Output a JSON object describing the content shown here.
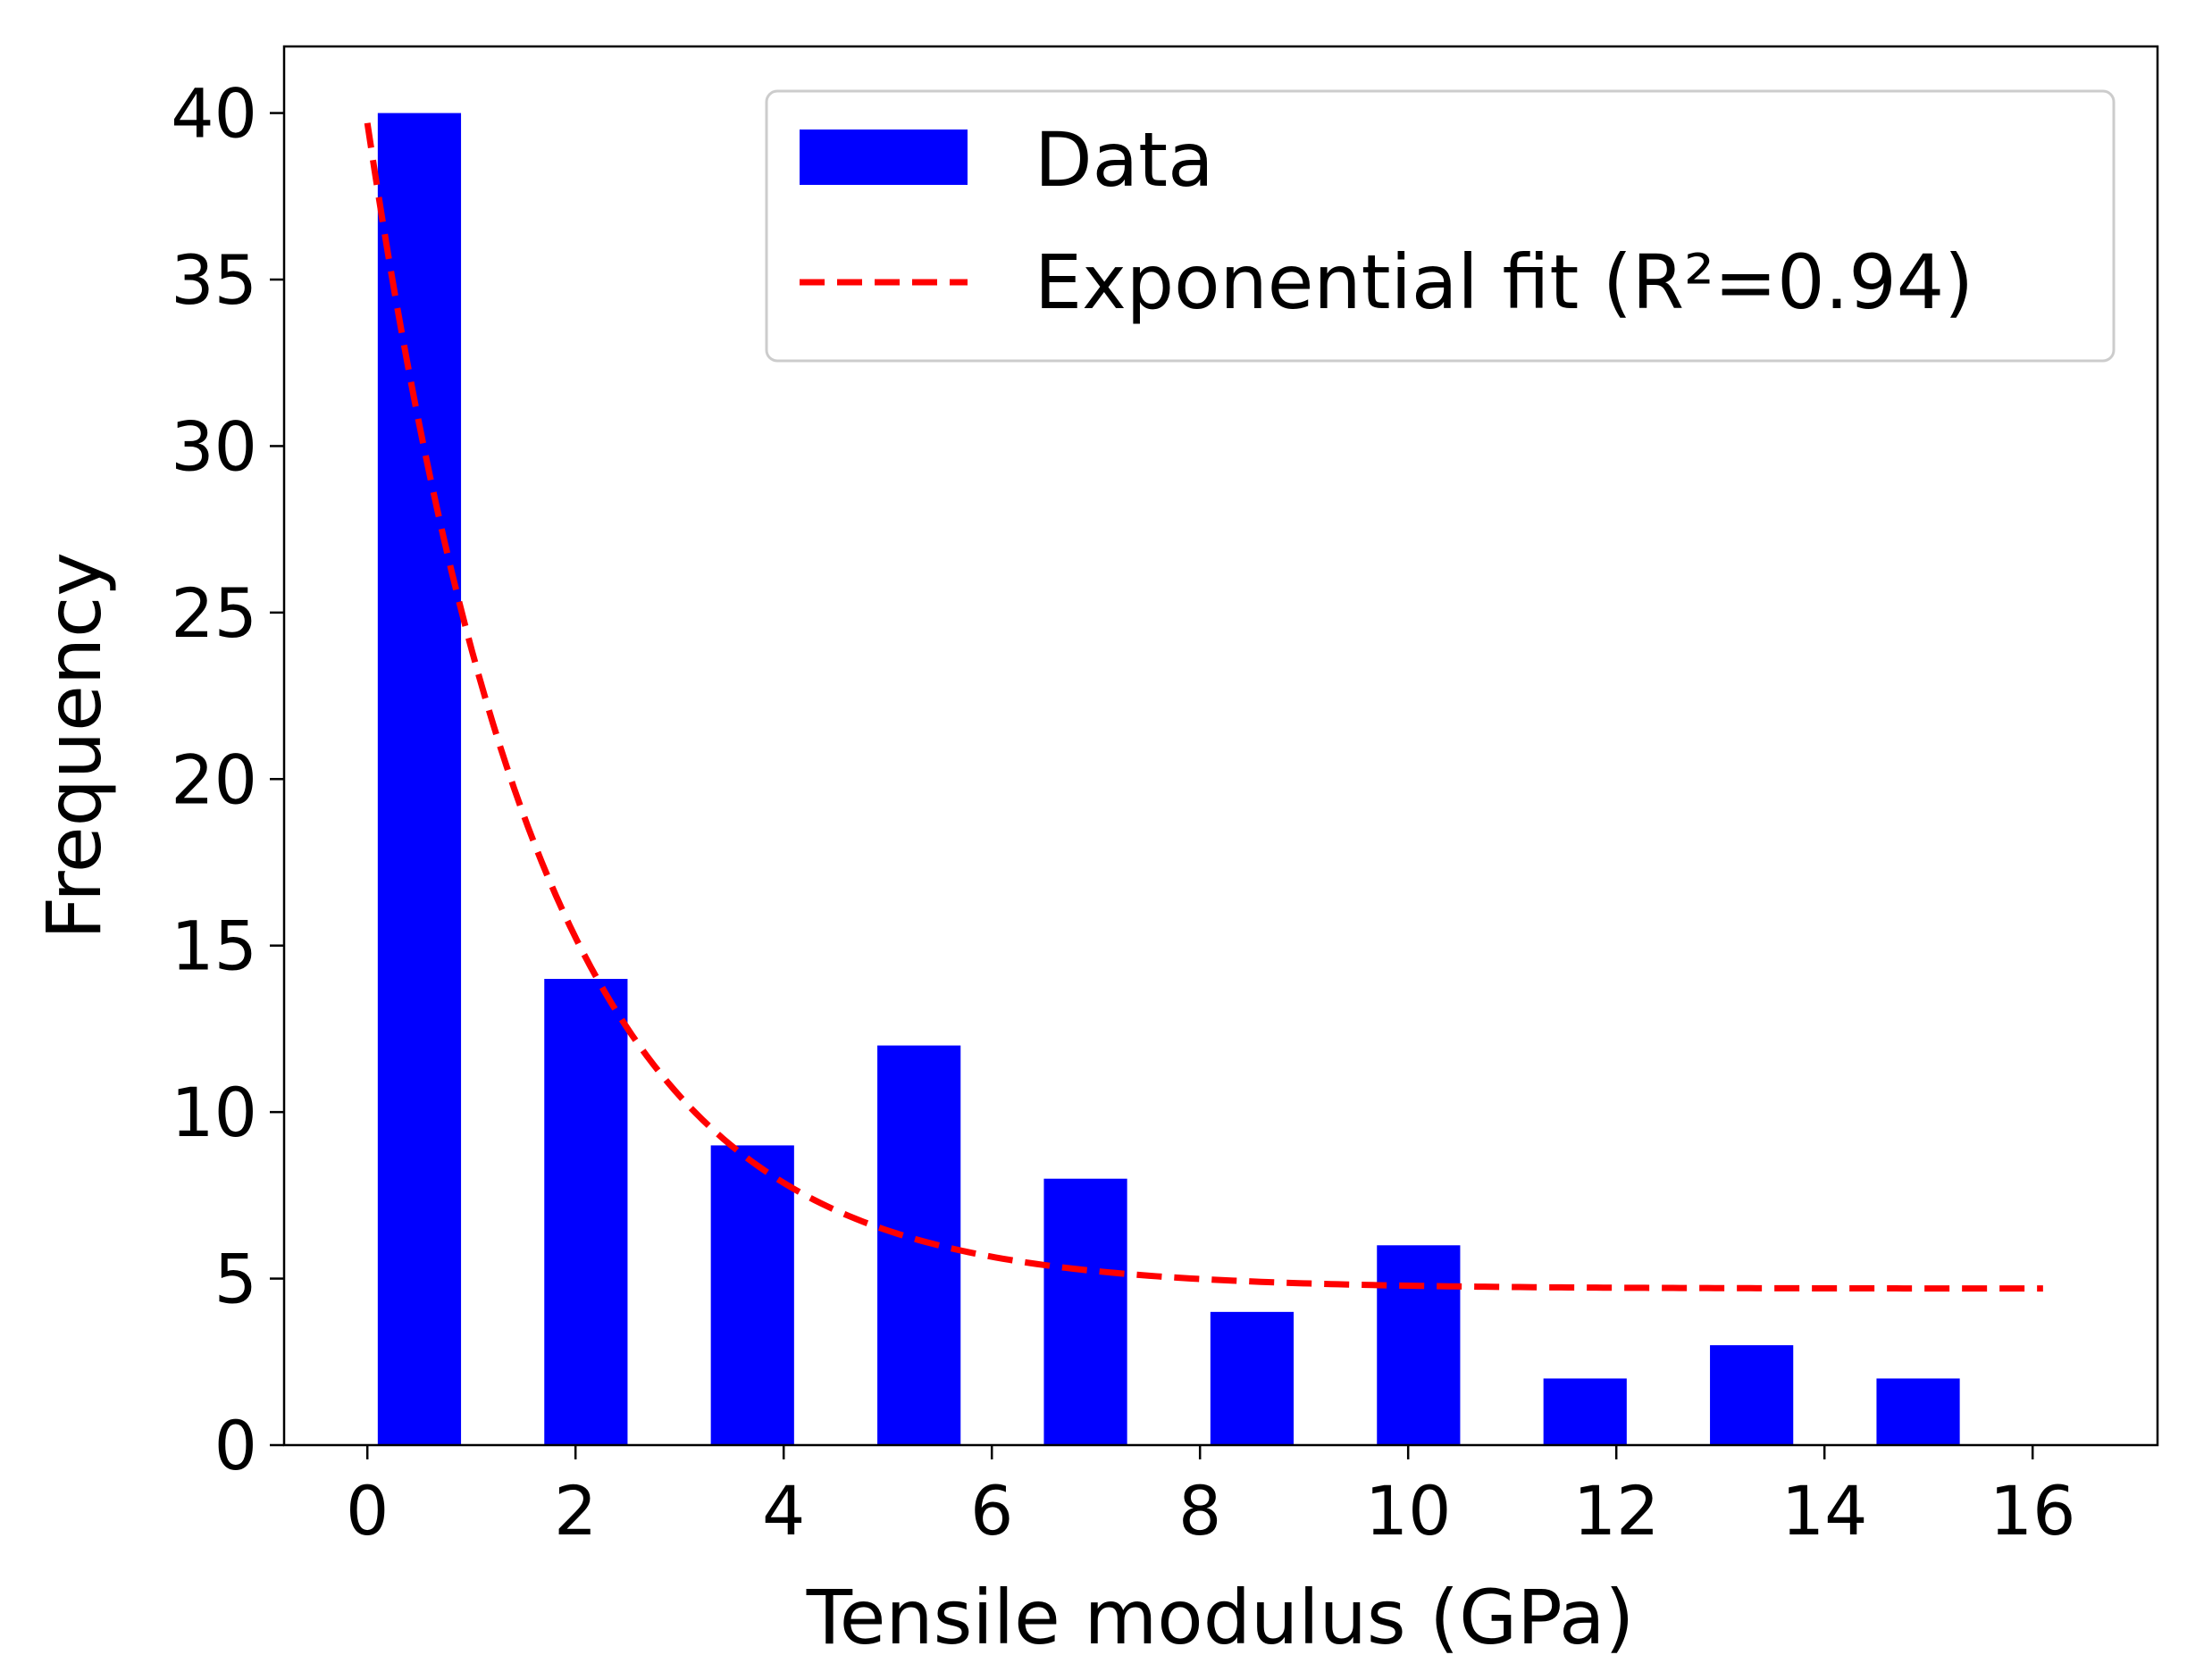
{
  "chart_data": {
    "type": "bar",
    "title": "",
    "xlabel": "Tensile modulus (GPa)",
    "ylabel": "Frequency",
    "xlim": [
      -0.8,
      17.2
    ],
    "ylim": [
      0,
      42
    ],
    "xticks": [
      0,
      2,
      4,
      6,
      8,
      10,
      12,
      14,
      16
    ],
    "xtick_labels": [
      "0",
      "2",
      "4",
      "6",
      "8",
      "10",
      "12",
      "14",
      "16"
    ],
    "yticks": [
      0,
      5,
      10,
      15,
      20,
      25,
      30,
      35,
      40
    ],
    "ytick_labels": [
      "0",
      "5",
      "10",
      "15",
      "20",
      "25",
      "30",
      "35",
      "40"
    ],
    "grid": false,
    "legend_position": "top-right",
    "series": [
      {
        "name": "Data",
        "kind": "bar",
        "color": "#0000ff",
        "bar_width": 0.8,
        "bins": [
          {
            "x": 0.5,
            "value": 40
          },
          {
            "x": 2.1,
            "value": 14
          },
          {
            "x": 3.7,
            "value": 9
          },
          {
            "x": 5.3,
            "value": 12
          },
          {
            "x": 6.9,
            "value": 8
          },
          {
            "x": 8.5,
            "value": 4
          },
          {
            "x": 10.1,
            "value": 6
          },
          {
            "x": 11.7,
            "value": 2
          },
          {
            "x": 13.3,
            "value": 3
          },
          {
            "x": 14.9,
            "value": 2
          }
        ]
      },
      {
        "name": "Exponential fit (R²=0.94)",
        "kind": "line",
        "style": "dashed",
        "color": "#ff0000",
        "function": "a*exp(-b*x)+c",
        "params": {
          "a": 35.0,
          "b": 0.6,
          "c": 4.7
        },
        "x_range": [
          0,
          16.1
        ]
      }
    ]
  }
}
